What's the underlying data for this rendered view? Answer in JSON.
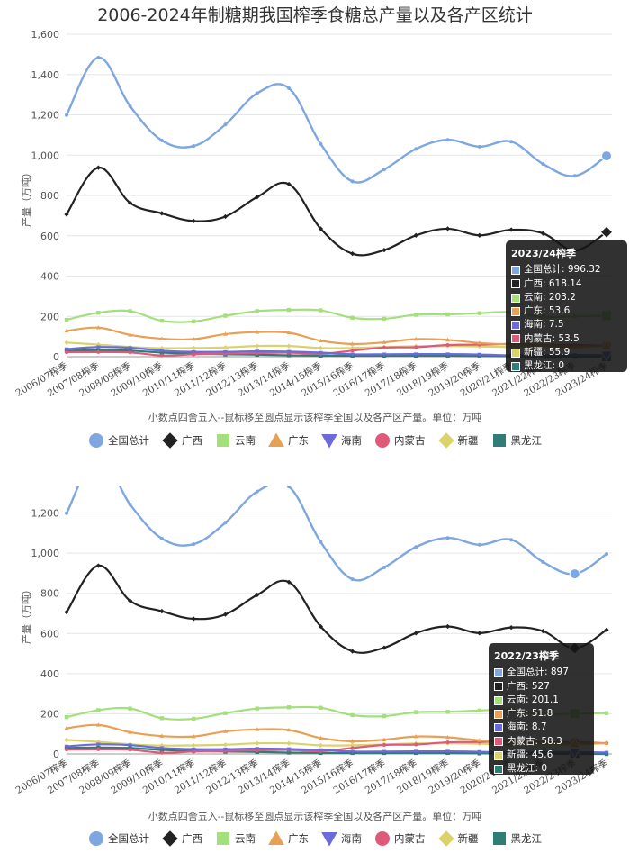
{
  "title": "2006-2024年制糖期我国榨季食糖总产量以及各产区统计",
  "note": "小数点四舍五入--鼠标移至圆点显示该榨季全国以及各产区产量。单位：万吨",
  "ylabel": "产量（万吨）",
  "colors": {
    "全国总计": "#7ea6e0",
    "广西": "#222222",
    "云南": "#a3e07c",
    "广东": "#e8a055",
    "海南": "#6b6bdc",
    "内蒙古": "#de5a78",
    "新疆": "#dcd26a",
    "黑龙江": "#2f7d76"
  },
  "legend": [
    {
      "name": "全国总计",
      "icon": "circle-icon"
    },
    {
      "name": "广西",
      "icon": "diamond-icon"
    },
    {
      "name": "云南",
      "icon": "square-icon"
    },
    {
      "name": "广东",
      "icon": "triangle-icon"
    },
    {
      "name": "海南",
      "icon": "triangle-down-icon"
    },
    {
      "name": "内蒙古",
      "icon": "circle-icon"
    },
    {
      "name": "新疆",
      "icon": "diamond-icon"
    },
    {
      "name": "黑龙江",
      "icon": "square-icon"
    }
  ],
  "chart_data": [
    {
      "type": "line",
      "title": "2006-2024年制糖期我国榨季食糖总产量以及各产区统计",
      "ylabel": "产量（万吨）",
      "ylim": [
        0,
        1600
      ],
      "yticks": [
        "0",
        "200",
        "400",
        "600",
        "800",
        "1,000",
        "1,200",
        "1,400",
        "1,600"
      ],
      "categories": [
        "2006/07榨季",
        "2007/08榨季",
        "2008/09榨季",
        "2009/10榨季",
        "2010/11榨季",
        "2011/12榨季",
        "2012/13榨季",
        "2013/14榨季",
        "2014/15榨季",
        "2015/16榨季",
        "2016/17榨季",
        "2017/18榨季",
        "2018/19榨季",
        "2019/20榨季",
        "2020/21榨季",
        "2021/22榨季",
        "2022/23榨季",
        "2023/24榨季"
      ],
      "series": [
        {
          "name": "全国总计",
          "values": [
            1199,
            1484,
            1243,
            1073,
            1045,
            1152,
            1307,
            1332,
            1056,
            870,
            929,
            1031,
            1076,
            1042,
            1067,
            956,
            897,
            996.32
          ]
        },
        {
          "name": "广西",
          "values": [
            706,
            938,
            763,
            711,
            673,
            695,
            792,
            856,
            635,
            511,
            529,
            602,
            635,
            602,
            630,
            612,
            527,
            618.14
          ]
        },
        {
          "name": "云南",
          "values": [
            183,
            218,
            226,
            178,
            175,
            203,
            226,
            232,
            230,
            193,
            188,
            208,
            210,
            216,
            221,
            196,
            201.1,
            203.2
          ]
        },
        {
          "name": "广东",
          "values": [
            128,
            144,
            108,
            89,
            87,
            112,
            122,
            119,
            79,
            63,
            71,
            87,
            83,
            68,
            61,
            58,
            51.8,
            53.6
          ]
        },
        {
          "name": "海南",
          "values": [
            38,
            48,
            44,
            30,
            24,
            24,
            27,
            25,
            20,
            12,
            12,
            13,
            13,
            11,
            7,
            9,
            8.7,
            7.5
          ]
        },
        {
          "name": "内蒙古",
          "values": [
            22,
            23,
            21,
            6,
            12,
            15,
            18,
            20,
            14,
            30,
            45,
            47,
            58,
            60,
            63,
            58,
            58.3,
            53.5
          ]
        },
        {
          "name": "新疆",
          "values": [
            70,
            60,
            48,
            42,
            43,
            46,
            53,
            53,
            43,
            43,
            48,
            52,
            53,
            51,
            48,
            52,
            45.6,
            55.9
          ]
        },
        {
          "name": "黑龙江",
          "values": [
            30,
            32,
            30,
            20,
            15,
            12,
            10,
            7,
            5,
            5,
            5,
            5,
            5,
            3,
            2,
            1,
            0,
            0
          ]
        }
      ],
      "tooltip": {
        "header": "2023/24榨季",
        "rows": [
          "全国总计: 996.32",
          "广西: 618.14",
          "云南: 203.2",
          "广东: 53.6",
          "海南: 7.5",
          "内蒙古: 53.5",
          "新疆: 55.9",
          "黑龙江: 0"
        ]
      },
      "highlight_index": 17
    },
    {
      "type": "line",
      "ylabel": "产量（万吨）",
      "ylim": [
        0,
        1300
      ],
      "yticks": [
        "0",
        "200",
        "400",
        "600",
        "800",
        "1,000",
        "1,200"
      ],
      "categories": [
        "2006/07榨季",
        "2007/08榨季",
        "2008/09榨季",
        "2009/10榨季",
        "2010/11榨季",
        "2011/12榨季",
        "2012/13榨季",
        "2013/14榨季",
        "2014/15榨季",
        "2015/16榨季",
        "2016/17榨季",
        "2017/18榨季",
        "2018/19榨季",
        "2019/20榨季",
        "2020/21榨季",
        "2021/22榨季",
        "2022/23榨季",
        "2023/24榨季"
      ],
      "series": [
        {
          "name": "全国总计",
          "values": [
            1199,
            1484,
            1243,
            1073,
            1045,
            1152,
            1307,
            1332,
            1056,
            870,
            929,
            1031,
            1076,
            1042,
            1067,
            956,
            897,
            996.32
          ]
        },
        {
          "name": "广西",
          "values": [
            706,
            938,
            763,
            711,
            673,
            695,
            792,
            856,
            635,
            511,
            529,
            602,
            635,
            602,
            630,
            612,
            527,
            618.14
          ]
        },
        {
          "name": "云南",
          "values": [
            183,
            218,
            226,
            178,
            175,
            203,
            226,
            232,
            230,
            193,
            188,
            208,
            210,
            216,
            221,
            196,
            201.1,
            203.2
          ]
        },
        {
          "name": "广东",
          "values": [
            128,
            144,
            108,
            89,
            87,
            112,
            122,
            119,
            79,
            63,
            71,
            87,
            83,
            68,
            61,
            58,
            51.8,
            53.6
          ]
        },
        {
          "name": "海南",
          "values": [
            38,
            48,
            44,
            30,
            24,
            24,
            27,
            25,
            20,
            12,
            12,
            13,
            13,
            11,
            7,
            9,
            8.7,
            7.5
          ]
        },
        {
          "name": "内蒙古",
          "values": [
            22,
            23,
            21,
            6,
            12,
            15,
            18,
            20,
            14,
            30,
            45,
            47,
            58,
            60,
            63,
            58,
            58.3,
            53.5
          ]
        },
        {
          "name": "新疆",
          "values": [
            70,
            60,
            48,
            42,
            43,
            46,
            53,
            53,
            43,
            43,
            48,
            52,
            53,
            51,
            48,
            52,
            45.6,
            55.9
          ]
        },
        {
          "name": "黑龙江",
          "values": [
            30,
            32,
            30,
            20,
            15,
            12,
            10,
            7,
            5,
            5,
            5,
            5,
            5,
            3,
            2,
            1,
            0,
            0
          ]
        }
      ],
      "tooltip": {
        "header": "2022/23榨季",
        "rows": [
          "全国总计: 897",
          "广西: 527",
          "云南: 201.1",
          "广东: 51.8",
          "海南: 8.7",
          "内蒙古: 58.3",
          "新疆: 45.6",
          "黑龙江: 0"
        ]
      },
      "highlight_index": 16
    }
  ]
}
